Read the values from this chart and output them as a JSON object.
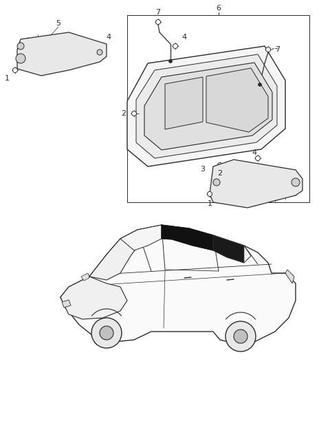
{
  "background_color": "#ffffff",
  "fig_width": 4.8,
  "fig_height": 6.12,
  "dpi": 100,
  "line_color": "#2a2a2a",
  "light_line": "#555555",
  "label_color": "#1a1a1a"
}
